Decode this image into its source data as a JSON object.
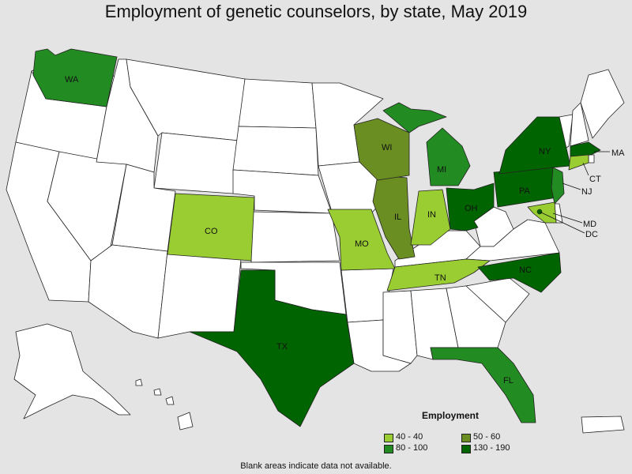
{
  "title": "Employment of genetic counselors, by state, May 2019",
  "footnote": "Blank areas indicate data not available.",
  "legend": {
    "title": "Employment",
    "items": [
      {
        "label": "40 - 40",
        "color": "#9acd32"
      },
      {
        "label": "50 - 60",
        "color": "#6b8e23"
      },
      {
        "label": "80 - 100",
        "color": "#228b22"
      },
      {
        "label": "130 - 190",
        "color": "#006400"
      }
    ]
  },
  "colors": {
    "no_data": "#ffffff",
    "border": "#222222",
    "background": "#e4e4e4"
  },
  "states": {
    "WA": {
      "label": "WA",
      "range": "80 - 100"
    },
    "CO": {
      "label": "CO",
      "range": "40 - 40"
    },
    "TX": {
      "label": "TX",
      "range": "130 - 190"
    },
    "MO": {
      "label": "MO",
      "range": "40 - 40"
    },
    "IL": {
      "label": "IL",
      "range": "50 - 60"
    },
    "WI": {
      "label": "WI",
      "range": "50 - 60"
    },
    "MI": {
      "label": "MI",
      "range": "80 - 100"
    },
    "IN": {
      "label": "IN",
      "range": "40 - 40"
    },
    "OH": {
      "label": "OH",
      "range": "130 - 190"
    },
    "TN": {
      "label": "TN",
      "range": "40 - 40"
    },
    "NC": {
      "label": "NC",
      "range": "130 - 190"
    },
    "PA": {
      "label": "PA",
      "range": "130 - 190"
    },
    "NY": {
      "label": "NY",
      "range": "130 - 190"
    },
    "MA": {
      "label": "MA",
      "range": "130 - 190"
    },
    "CT": {
      "label": "CT",
      "range": "40 - 40"
    },
    "NJ": {
      "label": "NJ",
      "range": "80 - 100"
    },
    "MD": {
      "label": "MD",
      "range": "40 - 40"
    },
    "DC": {
      "label": "DC",
      "range": "130 - 190"
    },
    "FL": {
      "label": "FL",
      "range": "80 - 100"
    }
  }
}
